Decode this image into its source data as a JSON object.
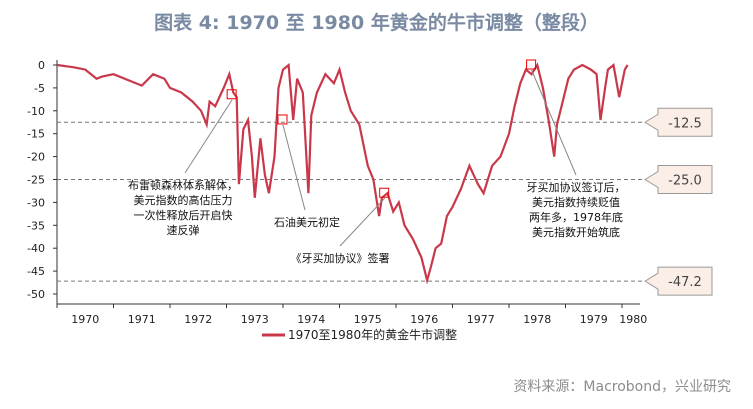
{
  "title": "图表 4:  1970 至 1980 年黄金的牛市调整（整段）",
  "source": "资料来源：Macrobond，兴业研究",
  "chart_data": {
    "type": "line",
    "title": "图表 4:  1970 至 1980 年黄金的牛市调整（整段）",
    "xlabel": "",
    "ylabel": "",
    "ylim": [
      -50,
      0
    ],
    "yticks": [
      "0",
      "-5",
      "-10",
      "-15",
      "-20",
      "-25",
      "-30",
      "-35",
      "-40",
      "-45",
      "-50"
    ],
    "ytick_values": [
      0,
      -5,
      -10,
      -15,
      -20,
      -25,
      -30,
      -35,
      -40,
      -45,
      -50
    ],
    "xticks": [
      "1970",
      "1971",
      "1972",
      "1973",
      "1974",
      "1975",
      "1976",
      "1977",
      "1978",
      "1979",
      "1980"
    ],
    "legend": {
      "label": "1970至1980年的黄金牛市调整",
      "placement": "bottom"
    },
    "series": [
      {
        "name": "1970至1980年的黄金牛市调整",
        "color": "#c9384a",
        "x": [
          1970.0,
          1970.3,
          1970.5,
          1970.7,
          1970.8,
          1971.0,
          1971.3,
          1971.5,
          1971.7,
          1971.9,
          1972.0,
          1972.2,
          1972.4,
          1972.55,
          1972.65,
          1972.7,
          1972.8,
          1972.95,
          1973.05,
          1973.12,
          1973.18,
          1973.22,
          1973.3,
          1973.38,
          1973.45,
          1973.5,
          1973.6,
          1973.68,
          1973.75,
          1973.85,
          1973.92,
          1974.0,
          1974.1,
          1974.18,
          1974.25,
          1974.35,
          1974.45,
          1974.5,
          1974.6,
          1974.75,
          1974.9,
          1975.0,
          1975.1,
          1975.2,
          1975.35,
          1975.5,
          1975.6,
          1975.7,
          1975.75,
          1975.85,
          1975.95,
          1976.05,
          1976.15,
          1976.3,
          1976.45,
          1976.55,
          1976.62,
          1976.7,
          1976.8,
          1976.9,
          1977.0,
          1977.15,
          1977.3,
          1977.45,
          1977.55,
          1977.7,
          1977.85,
          1978.0,
          1978.1,
          1978.2,
          1978.3,
          1978.4,
          1978.5,
          1978.6,
          1978.7,
          1978.8,
          1978.85,
          1978.95,
          1979.05,
          1979.15,
          1979.3,
          1979.45,
          1979.55,
          1979.62,
          1979.7,
          1979.75,
          1979.85,
          1979.95,
          1980.0,
          1980.05,
          1980.1
        ],
        "y": [
          0,
          -0.5,
          -1,
          -3,
          -2.5,
          -2,
          -3.5,
          -4.5,
          -2,
          -3,
          -5,
          -6,
          -8,
          -10,
          -13,
          -8,
          -9,
          -5,
          -2,
          -6,
          -7,
          -26,
          -14,
          -12,
          -20,
          -29,
          -16,
          -24,
          -28,
          -20,
          -5,
          -1,
          0,
          -12,
          -3,
          -6,
          -28,
          -11,
          -6,
          -2,
          -4,
          -1,
          -6,
          -10,
          -13,
          -22,
          -25,
          -33,
          -29,
          -28,
          -32,
          -30,
          -35,
          -38,
          -42,
          -47,
          -44,
          -40,
          -39,
          -33,
          -31,
          -27,
          -22,
          -26,
          -28,
          -22,
          -20,
          -15,
          -9,
          -4,
          -1,
          -2,
          0,
          -5,
          -12,
          -20,
          -13,
          -8,
          -3,
          -1,
          0,
          -1,
          -2,
          -12,
          -5,
          -1,
          0,
          -7,
          -4,
          -1,
          0
        ]
      }
    ],
    "reference_lines": [
      {
        "value": -12.5,
        "label": "-12.5"
      },
      {
        "value": -25.0,
        "label": "-25.0"
      },
      {
        "value": -47.2,
        "label": "-47.2"
      }
    ],
    "markers": [
      {
        "x": 1973.1,
        "y": -6.5
      },
      {
        "x": 1974.0,
        "y": -12
      },
      {
        "x": 1975.8,
        "y": -28
      },
      {
        "x": 1978.4,
        "y": 0
      }
    ],
    "annotations": [
      {
        "lines": [
          "布雷顿森林体系解体，",
          "美元指数的高估压力",
          "一次性释放后开启快",
          "速反弹"
        ]
      },
      {
        "lines": [
          "石油美元初定"
        ]
      },
      {
        "lines": [
          "《牙买加协议》签署"
        ]
      },
      {
        "lines": [
          "牙买加协议签订后，",
          "美元指数持续贬值",
          "两年多，1978年底",
          "美元指数开始筑底"
        ]
      }
    ]
  }
}
